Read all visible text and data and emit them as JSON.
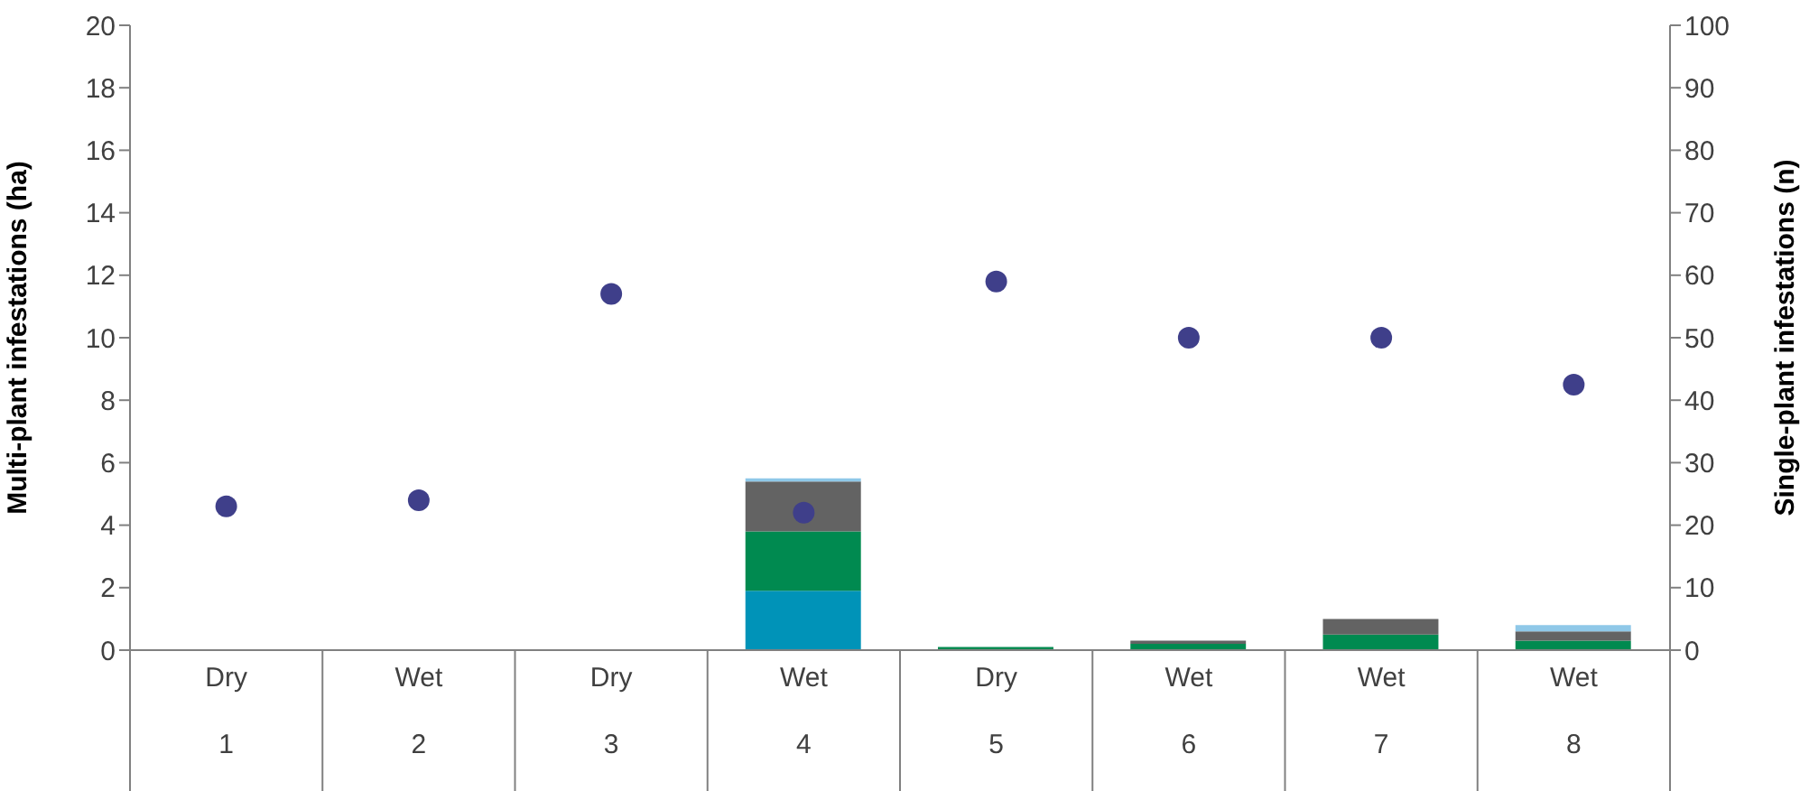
{
  "chart_data": {
    "type": "bar",
    "stacked": true,
    "ylabel": "Multi-plant infestations (ha)",
    "y2label": "Single-plant infestations (n)",
    "categories": [
      "Dry\n1",
      "Wet\n2",
      "Dry\n3",
      "Wet\n4",
      "Dry\n5",
      "Wet\n6",
      "Wet\n7",
      "Wet\n8"
    ],
    "ylim": [
      0,
      20
    ],
    "yticks": [
      0,
      2,
      4,
      6,
      8,
      10,
      12,
      14,
      16,
      18,
      20
    ],
    "y2lim": [
      0,
      100
    ],
    "y2ticks": [
      0,
      10,
      20,
      30,
      40,
      50,
      60,
      70,
      80,
      90,
      100
    ],
    "grid": false,
    "legend": false,
    "series": [
      {
        "color": "#0093b8",
        "values": [
          0,
          0,
          0,
          1.9,
          0,
          0,
          0,
          0
        ]
      },
      {
        "color": "#008a50",
        "values": [
          0,
          0,
          0,
          1.9,
          0.1,
          0.2,
          0.5,
          0.3
        ]
      },
      {
        "color": "#636363",
        "values": [
          0,
          0,
          0,
          1.6,
          0,
          0.1,
          0.5,
          0.3
        ]
      },
      {
        "color": "#8fc8e8",
        "values": [
          0,
          0,
          0,
          0.1,
          0,
          0,
          0,
          0.2
        ]
      },
      {
        "type": "scatter",
        "axis": "y2",
        "color": "#3f3f8a",
        "marker": "circle",
        "values": [
          23,
          24,
          57,
          22,
          59,
          50,
          50,
          42.5
        ]
      }
    ]
  }
}
